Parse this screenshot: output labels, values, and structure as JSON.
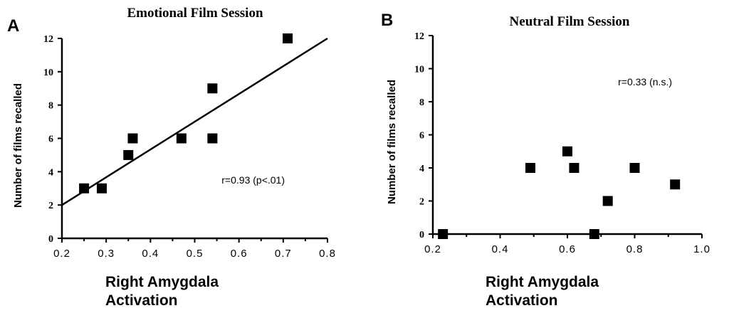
{
  "chart_data": [
    {
      "type": "scatter",
      "panel": "A",
      "title": "Emotional Film Session",
      "xlabel": "Right Amygdala Activation",
      "ylabel": "Number of films recalled",
      "xlim": [
        0.2,
        0.8
      ],
      "ylim": [
        0,
        12
      ],
      "xticks": [
        "0.2",
        "0.3",
        "0.4",
        "0.5",
        "0.6",
        "0.7",
        "0.8"
      ],
      "yticks": [
        "0",
        "2",
        "4",
        "6",
        "8",
        "10",
        "12"
      ],
      "points": [
        [
          0.25,
          3
        ],
        [
          0.29,
          3
        ],
        [
          0.35,
          5
        ],
        [
          0.36,
          6
        ],
        [
          0.47,
          6
        ],
        [
          0.54,
          9
        ],
        [
          0.54,
          6
        ],
        [
          0.71,
          12
        ]
      ],
      "fit_line": [
        [
          0.2,
          2
        ],
        [
          0.8,
          12
        ]
      ],
      "annotation": "r=0.93    (p<.01)",
      "grid": false
    },
    {
      "type": "scatter",
      "panel": "B",
      "title": "Neutral Film Session",
      "xlabel": "Right Amygdala Activation",
      "ylabel": "Number of films recalled",
      "xlim": [
        0.2,
        1.0
      ],
      "ylim": [
        0,
        12
      ],
      "xticks": [
        "0.2",
        "0.4",
        "0.6",
        "0.8",
        "1.0"
      ],
      "yticks": [
        "0",
        "2",
        "4",
        "6",
        "8",
        "10",
        "12"
      ],
      "points": [
        [
          0.23,
          0
        ],
        [
          0.49,
          4
        ],
        [
          0.6,
          5
        ],
        [
          0.62,
          4
        ],
        [
          0.68,
          0
        ],
        [
          0.72,
          2
        ],
        [
          0.8,
          4
        ],
        [
          0.92,
          3
        ]
      ],
      "annotation": "r=0.33   (n.s.)",
      "grid": false
    }
  ],
  "xlabel_lines": [
    "Right Amygdala",
    "Activation"
  ]
}
